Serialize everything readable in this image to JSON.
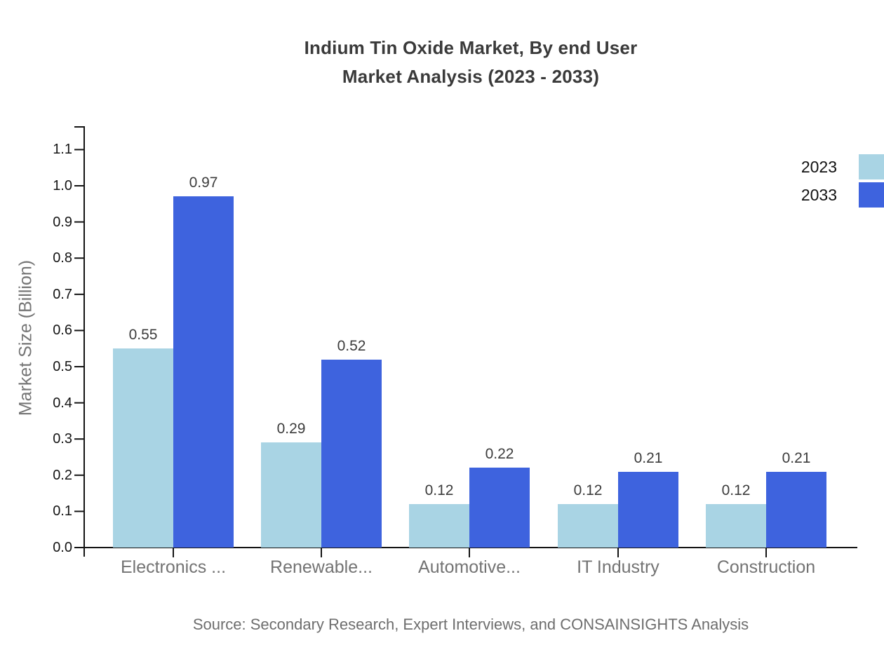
{
  "title": {
    "line1": "Indium Tin Oxide Market, By end User",
    "line2": "Market Analysis (2023 - 2033)"
  },
  "source": "Source: Secondary Research, Expert Interviews, and CONSAINSIGHTS Analysis",
  "chart_data": {
    "type": "bar",
    "categories": [
      "Electronics ...",
      "Renewable...",
      "Automotive...",
      "IT Industry",
      "Construction"
    ],
    "series": [
      {
        "name": "2023",
        "color": "#a9d4e4",
        "values": [
          0.55,
          0.29,
          0.12,
          0.12,
          0.12
        ]
      },
      {
        "name": "2033",
        "color": "#3e63de",
        "values": [
          0.97,
          0.52,
          0.22,
          0.21,
          0.21
        ]
      }
    ],
    "title": "Indium Tin Oxide Market, By end User Market Analysis (2023 - 2033)",
    "xlabel": "",
    "ylabel": "Market Size (Billion)",
    "ylim": [
      0,
      1.16
    ],
    "yticks": [
      0.0,
      0.1,
      0.2,
      0.3,
      0.4,
      0.5,
      0.6,
      0.7,
      0.8,
      0.9,
      1.0,
      1.1
    ],
    "grid": false,
    "value_labels": true,
    "legend_position": "top-right",
    "axis_color": "#141414"
  }
}
